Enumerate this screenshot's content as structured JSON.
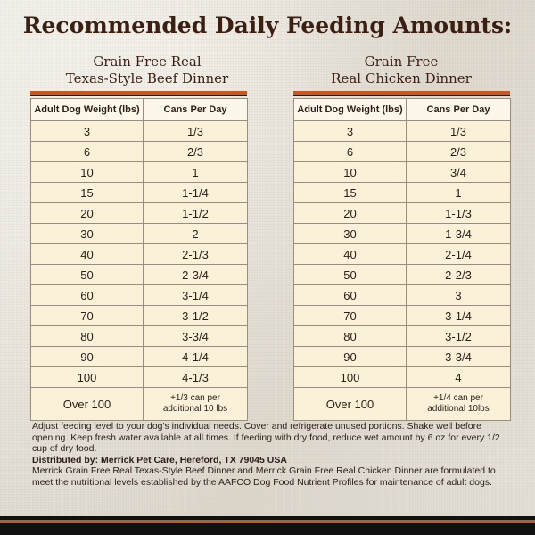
{
  "title": "Recommended Daily Feeding Amounts:",
  "tables": [
    {
      "product_line1": "Grain Free Real",
      "product_line2": "Texas-Style Beef Dinner",
      "headers": [
        "Adult Dog Weight (lbs)",
        "Cans Per Day"
      ],
      "rows": [
        [
          "3",
          "1/3"
        ],
        [
          "6",
          "2/3"
        ],
        [
          "10",
          "1"
        ],
        [
          "15",
          "1-1/4"
        ],
        [
          "20",
          "1-1/2"
        ],
        [
          "30",
          "2"
        ],
        [
          "40",
          "2-1/3"
        ],
        [
          "50",
          "2-3/4"
        ],
        [
          "60",
          "3-1/4"
        ],
        [
          "70",
          "3-1/2"
        ],
        [
          "80",
          "3-3/4"
        ],
        [
          "90",
          "4-1/4"
        ],
        [
          "100",
          "4-1/3"
        ]
      ],
      "last_row": [
        "Over 100",
        "+1/3 can per",
        "additional 10 lbs"
      ]
    },
    {
      "product_line1": "Grain Free",
      "product_line2": "Real Chicken Dinner",
      "headers": [
        "Adult Dog Weight (lbs)",
        "Cans Per Day"
      ],
      "rows": [
        [
          "3",
          "1/3"
        ],
        [
          "6",
          "2/3"
        ],
        [
          "10",
          "3/4"
        ],
        [
          "15",
          "1"
        ],
        [
          "20",
          "1-1/3"
        ],
        [
          "30",
          "1-3/4"
        ],
        [
          "40",
          "2-1/4"
        ],
        [
          "50",
          "2-2/3"
        ],
        [
          "60",
          "3"
        ],
        [
          "70",
          "3-1/4"
        ],
        [
          "80",
          "3-1/2"
        ],
        [
          "90",
          "3-3/4"
        ],
        [
          "100",
          "4"
        ]
      ],
      "last_row": [
        "Over 100",
        "+1/4 can per",
        "additional 10lbs"
      ]
    }
  ],
  "footer": {
    "instructions": "Adjust feeding level to your dog's individual needs. Cover and refrigerate unused portions. Shake well before opening. Keep fresh water available at all times. If feeding with dry food, reduce wet amount by 6 oz for every 1/2 cup of dry food.",
    "distributed": "Distributed by: Merrick Pet Care, Hereford, TX 79045 USA",
    "aafco": "Merrick Grain Free Real Texas-Style Beef Dinner and Merrick Grain Free Real Chicken Dinner are formulated to meet the nutritional levels established by the AAFCO Dog Food Nutrient Profiles for maintenance of adult dogs."
  },
  "colors": {
    "accent": "#c9581f",
    "title_text": "#3a1f12",
    "cell_bg": "#fbf1d9",
    "header_bg": "#fcf7ea"
  }
}
